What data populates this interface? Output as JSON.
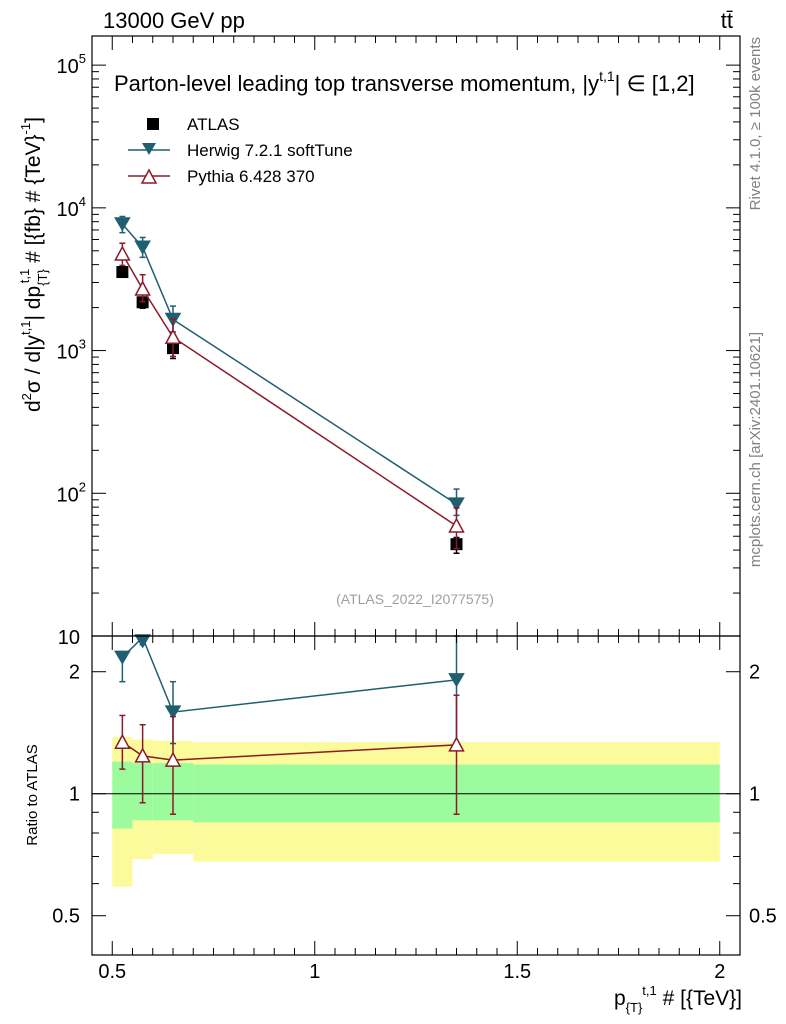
{
  "header": {
    "energy_label": "13000 GeV pp",
    "process_label": "tt̄"
  },
  "side_labels": {
    "rivet": "Rivet 4.1.0, ≥ 100k events",
    "mcplots": "mcplots.cern.ch [arXiv:2401.10621]"
  },
  "watermark": "(ATLAS_2022_I2077575)",
  "colors": {
    "atlas": "#000000",
    "herwig": "#1f5f6f",
    "pythia": "#8b1a2b",
    "band_inner": "#9cfb9c",
    "band_outer": "#fbfb9c"
  },
  "chart_data": [
    {
      "type": "line",
      "panel": "main",
      "title": "Parton-level leading top transverse momentum, |y^{t,1}| ∈ [1,2]",
      "title_text": "Parton-level leading top transverse momentum, |y",
      "title_sup": "t,1",
      "title_tail": "| ∈ [1,2]",
      "ylabel": "d²σ / d|y^{t,1}| dp_{T}^{t,1} # [{fb} # {TeV}^{-1}]",
      "ylabel_parts": [
        "d",
        "2",
        "σ / d|y",
        "t,1",
        "| dp",
        "{T}",
        "t,1",
        " # [{fb} # {TeV}",
        "-1",
        "]"
      ],
      "yscale": "log",
      "ylim": [
        10,
        160000
      ],
      "xlim": [
        0.45,
        2.05
      ],
      "yticks": [
        {
          "value": 10,
          "label": "10",
          "exp": ""
        },
        {
          "value": 100,
          "label": "10",
          "exp": "2"
        },
        {
          "value": 1000,
          "label": "10",
          "exp": "3"
        },
        {
          "value": 10000,
          "label": "10",
          "exp": "4"
        },
        {
          "value": 100000,
          "label": "10",
          "exp": "5"
        }
      ],
      "legend": [
        "ATLAS",
        "Herwig 7.2.1 softTune",
        "Pythia 6.428 370"
      ],
      "legend_position": "top-left",
      "series": [
        {
          "name": "ATLAS",
          "marker": "square",
          "x": [
            0.525,
            0.575,
            0.65,
            1.35
          ],
          "y": [
            3550,
            2180,
            1040,
            44
          ],
          "y_err": [
            [
              250,
              320
            ],
            [
              200,
              300
            ],
            [
              160,
              140
            ],
            [
              6,
              5
            ]
          ],
          "x_edges": [
            [
              0.5,
              0.55
            ],
            [
              0.55,
              0.6
            ],
            [
              0.6,
              0.7
            ],
            [
              0.7,
              2.0
            ]
          ]
        },
        {
          "name": "Herwig 7.2.1 softTune",
          "marker": "triangle-down",
          "x": [
            0.525,
            0.575,
            0.65,
            1.35
          ],
          "y": [
            7700,
            5300,
            1650,
            84
          ],
          "y_err": [
            [
              1000,
              1000
            ],
            [
              800,
              900
            ],
            [
              300,
              400
            ],
            [
              14,
              23
            ]
          ]
        },
        {
          "name": "Pythia 6.428 370",
          "marker": "triangle-up-open",
          "x": [
            0.525,
            0.575,
            0.65,
            1.35
          ],
          "y": [
            4750,
            2700,
            1240,
            59
          ],
          "y_err": [
            [
              800,
              900
            ],
            [
              500,
              700
            ],
            [
              330,
              420
            ],
            [
              18,
              20
            ]
          ]
        }
      ]
    },
    {
      "type": "line",
      "panel": "ratio",
      "ylabel": "Ratio to ATLAS",
      "yscale": "log",
      "ylim": [
        0.4,
        2.45
      ],
      "xlim": [
        0.45,
        2.05
      ],
      "xlabel": "p_{T}^{t,1} # [{TeV}]",
      "xlabel_parts": [
        "p",
        "{T}",
        "t,1",
        " # [{TeV}]"
      ],
      "xticks": [
        {
          "value": 0.5,
          "label": "0.5"
        },
        {
          "value": 1.0,
          "label": "1"
        },
        {
          "value": 1.5,
          "label": "1.5"
        },
        {
          "value": 2.0,
          "label": "2"
        }
      ],
      "yticks": [
        {
          "value": 0.5,
          "label": "0.5"
        },
        {
          "value": 1,
          "label": "1"
        },
        {
          "value": 2,
          "label": "2"
        }
      ],
      "bands": [
        {
          "x0": 0.5,
          "x1": 0.55,
          "inner": [
            0.82,
            1.2
          ],
          "outer": [
            0.59,
            1.38
          ]
        },
        {
          "x0": 0.55,
          "x1": 0.6,
          "inner": [
            0.86,
            1.19
          ],
          "outer": [
            0.69,
            1.36
          ]
        },
        {
          "x0": 0.6,
          "x1": 0.7,
          "inner": [
            0.86,
            1.19
          ],
          "outer": [
            0.71,
            1.35
          ]
        },
        {
          "x0": 0.7,
          "x1": 2.0,
          "inner": [
            0.85,
            1.18
          ],
          "outer": [
            0.68,
            1.34
          ]
        }
      ],
      "series": [
        {
          "name": "Herwig 7.2.1 softTune",
          "x": [
            0.525,
            0.575,
            0.65,
            1.35
          ],
          "y": [
            2.17,
            2.43,
            1.59,
            1.91
          ],
          "y_err": [
            [
              0.28,
              0.0
            ],
            [
              0.1,
              0.0
            ],
            [
              0.26,
              0.3
            ],
            [
              0.6,
              0.6
            ]
          ]
        },
        {
          "name": "Pythia 6.428 370",
          "x": [
            0.525,
            0.575,
            0.65,
            1.35
          ],
          "y": [
            1.34,
            1.24,
            1.21,
            1.32
          ],
          "y_err": [
            [
              0.19,
              0.22
            ],
            [
              0.29,
              0.24
            ],
            [
              0.32,
              0.34
            ],
            [
              0.43,
              0.43
            ]
          ]
        }
      ]
    }
  ]
}
